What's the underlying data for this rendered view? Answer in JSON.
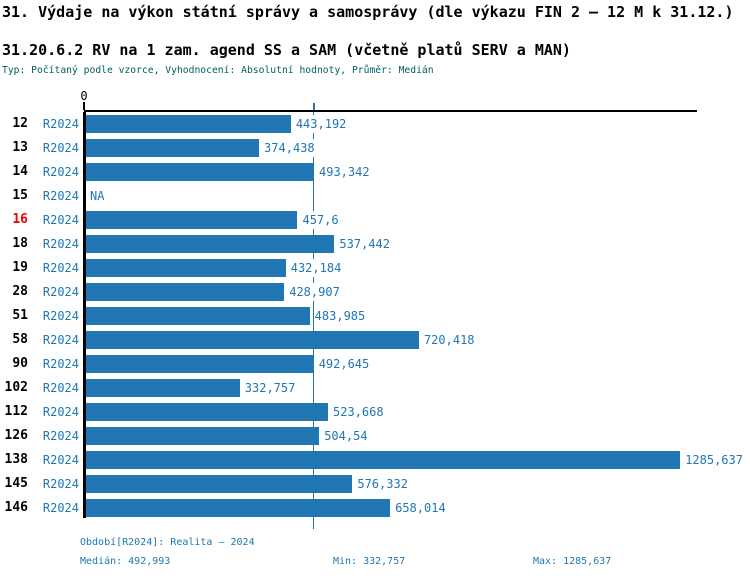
{
  "header": {
    "title": "31. Výdaje na výkon státní správy a samosprávy (dle výkazu FIN 2 – 12 M k 31.12.)",
    "subtitle": "31.20.6.2 RV na 1 zam. agend SS a SAM (včetně platů SERV a MAN)",
    "meta": "Typ: Počítaný podle vzorce, Vyhodnocení: Absolutní hodnoty, Průměr: Medián"
  },
  "chart_data": {
    "type": "bar",
    "orientation": "horizontal",
    "x_axis": {
      "origin_label": "0",
      "max": 1322,
      "median_value": 492.993,
      "grid": false
    },
    "legend": "none",
    "period": "R2024",
    "rows": [
      {
        "category": "12",
        "period": "R2024",
        "value": 443.192,
        "label": "443,192",
        "highlight": false
      },
      {
        "category": "13",
        "period": "R2024",
        "value": 374.438,
        "label": "374,438",
        "highlight": false
      },
      {
        "category": "14",
        "period": "R2024",
        "value": 493.342,
        "label": "493,342",
        "highlight": false
      },
      {
        "category": "15",
        "period": "R2024",
        "value": null,
        "label": "NA",
        "highlight": false
      },
      {
        "category": "16",
        "period": "R2024",
        "value": 457.6,
        "label": "457,6",
        "highlight": true
      },
      {
        "category": "18",
        "period": "R2024",
        "value": 537.442,
        "label": "537,442",
        "highlight": false
      },
      {
        "category": "19",
        "period": "R2024",
        "value": 432.184,
        "label": "432,184",
        "highlight": false
      },
      {
        "category": "28",
        "period": "R2024",
        "value": 428.907,
        "label": "428,907",
        "highlight": false
      },
      {
        "category": "51",
        "period": "R2024",
        "value": 483.985,
        "label": "483,985",
        "highlight": false
      },
      {
        "category": "58",
        "period": "R2024",
        "value": 720.418,
        "label": "720,418",
        "highlight": false
      },
      {
        "category": "90",
        "period": "R2024",
        "value": 492.645,
        "label": "492,645",
        "highlight": false
      },
      {
        "category": "102",
        "period": "R2024",
        "value": 332.757,
        "label": "332,757",
        "highlight": false
      },
      {
        "category": "112",
        "period": "R2024",
        "value": 523.668,
        "label": "523,668",
        "highlight": false
      },
      {
        "category": "126",
        "period": "R2024",
        "value": 504.54,
        "label": "504,54",
        "highlight": false
      },
      {
        "category": "138",
        "period": "R2024",
        "value": 1285.637,
        "label": "1285,637",
        "highlight": false
      },
      {
        "category": "145",
        "period": "R2024",
        "value": 576.332,
        "label": "576,332",
        "highlight": false
      },
      {
        "category": "146",
        "period": "R2024",
        "value": 658.014,
        "label": "658,014",
        "highlight": false
      }
    ]
  },
  "footer": {
    "period_info": "Období[R2024]: Realita – 2024",
    "median": "Medián: 492,993",
    "min": "Min: 332,757",
    "max": "Max: 1285,637"
  },
  "colors": {
    "bar": "#2077b4",
    "accent_text": "#2077b4",
    "highlight": "#ee0000",
    "meta_text": "#006060",
    "axis": "#000000"
  }
}
